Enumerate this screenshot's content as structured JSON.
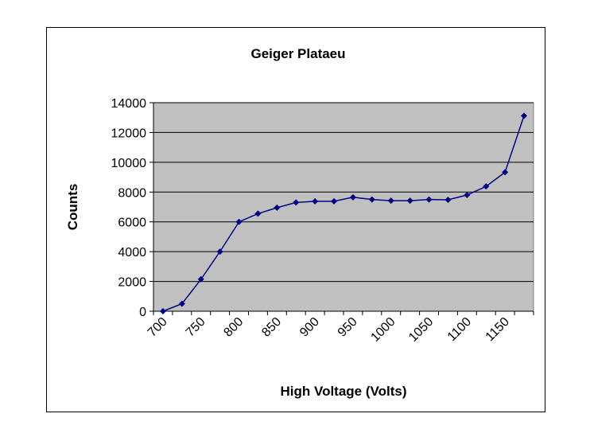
{
  "chart_data": {
    "type": "line",
    "title": "Geiger Plataeu",
    "xlabel": "High Voltage (Volts)",
    "ylabel": "Counts",
    "x_tick_labels": [
      "700",
      "750",
      "800",
      "850",
      "900",
      "950",
      "1000",
      "1050",
      "1100",
      "1150"
    ],
    "y_tick_labels": [
      "0",
      "2000",
      "4000",
      "6000",
      "8000",
      "10000",
      "12000",
      "14000"
    ],
    "ylim": [
      0,
      14000
    ],
    "grid": true,
    "legend": "none",
    "plot_background": "#c0c0c0",
    "series_color": "#000080",
    "series": [
      {
        "x": [
          700,
          725,
          750,
          775,
          800,
          825,
          850,
          875,
          900,
          925,
          950,
          975,
          1000,
          1025,
          1050,
          1075,
          1100,
          1125,
          1150,
          1175
        ],
        "values": [
          0,
          500,
          2150,
          4000,
          6000,
          6550,
          6950,
          7300,
          7380,
          7380,
          7650,
          7500,
          7420,
          7420,
          7500,
          7480,
          7800,
          8380,
          9330,
          13120
        ]
      }
    ]
  }
}
